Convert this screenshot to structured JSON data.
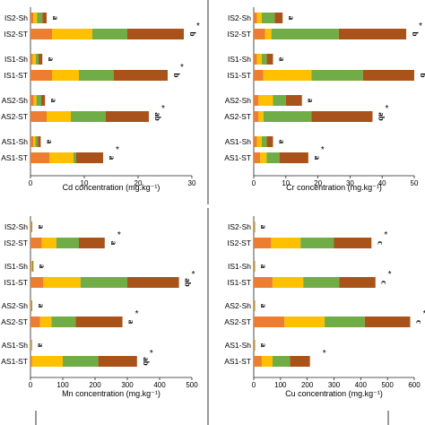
{
  "colors": [
    "#ED7D31",
    "#FFC000",
    "#70AD47",
    "#A9521A"
  ],
  "chart_data": [
    {
      "type": "bar",
      "stacked": true,
      "orientation": "horizontal",
      "xlabel": "Cd concentration (mg.kg⁻¹)",
      "xlim": [
        0,
        30
      ],
      "xticks": [
        "0",
        "10",
        "20",
        "30"
      ],
      "categories": [
        "IS2-Sh",
        "IS2-ST",
        "IS1-Sh",
        "IS1-ST",
        "AS2-Sh",
        "AS2-ST",
        "AS1-Sh",
        "AS1-ST"
      ],
      "series": [
        {
          "values": [
            0.5,
            4.0,
            0.4,
            4.0,
            0.6,
            3.0,
            0.5,
            3.5
          ]
        },
        {
          "values": [
            0.7,
            7.5,
            0.6,
            5.0,
            0.5,
            4.5,
            0.4,
            4.5
          ]
        },
        {
          "values": [
            1.0,
            6.5,
            0.5,
            6.5,
            0.9,
            6.5,
            0.5,
            0.5
          ]
        },
        {
          "values": [
            0.8,
            10.5,
            0.7,
            10.0,
            0.7,
            8.0,
            0.5,
            5.0
          ]
        }
      ],
      "letters": [
        "a",
        "b",
        "a",
        "b",
        "a",
        "ab",
        "a",
        "a"
      ],
      "stars": [
        "",
        "*",
        "",
        "*",
        "",
        "*",
        "",
        "*"
      ]
    },
    {
      "type": "bar",
      "stacked": true,
      "orientation": "horizontal",
      "xlabel": "Cr concentration (mg.kg⁻¹)",
      "xlim": [
        0,
        50
      ],
      "xticks": [
        "0",
        "10",
        "20",
        "30",
        "40",
        "50"
      ],
      "categories": [
        "IS2-Sh",
        "IS2-ST",
        "IS1-Sh",
        "IS1-ST",
        "AS2-Sh",
        "AS2-ST",
        "AS1-Sh",
        "AS1-ST"
      ],
      "series": [
        {
          "values": [
            1.0,
            3.5,
            1.0,
            3.0,
            1.5,
            1.5,
            1.0,
            2.0
          ]
        },
        {
          "values": [
            1.5,
            2.0,
            1.5,
            15.0,
            4.5,
            1.5,
            1.5,
            2.0
          ]
        },
        {
          "values": [
            4.0,
            21.0,
            1.5,
            16.0,
            4.0,
            15.0,
            1.5,
            4.0
          ]
        },
        {
          "values": [
            2.5,
            21.0,
            2.0,
            16.0,
            5.0,
            19.0,
            2.0,
            9.0
          ]
        }
      ],
      "letters": [
        "a",
        "b",
        "a",
        "b",
        "a",
        "ab",
        "a",
        "a"
      ],
      "stars": [
        "",
        "*",
        "",
        "*",
        "",
        "*",
        "",
        "*"
      ]
    },
    {
      "type": "bar",
      "stacked": true,
      "orientation": "horizontal",
      "xlabel": "Mn concentration (mg.kg⁻¹)",
      "xlim": [
        0,
        500
      ],
      "xticks": [
        "0",
        "100",
        "200",
        "300",
        "400",
        "500"
      ],
      "categories": [
        "IS2-Sh",
        "IS2-ST",
        "IS1-Sh",
        "IS1-ST",
        "AS2-Sh",
        "AS2-ST",
        "AS1-Sh",
        "AS1-ST"
      ],
      "series": [
        {
          "values": [
            2,
            35,
            3,
            40,
            2,
            30,
            1,
            5
          ]
        },
        {
          "values": [
            1,
            45,
            2,
            115,
            1,
            35,
            1,
            95
          ]
        },
        {
          "values": [
            1,
            70,
            2,
            145,
            1,
            75,
            1,
            110
          ]
        },
        {
          "values": [
            1,
            80,
            2,
            160,
            1,
            145,
            1,
            120
          ]
        }
      ],
      "letters": [
        "a",
        "a",
        "a",
        "ab",
        "a",
        "a",
        "a",
        "ab"
      ],
      "stars": [
        "",
        "*",
        "",
        "*",
        "",
        "*",
        "",
        "*"
      ]
    },
    {
      "type": "bar",
      "stacked": true,
      "orientation": "horizontal",
      "xlabel": "Cu concentration (mg.kg⁻¹)",
      "xlim": [
        0,
        600
      ],
      "xticks": [
        "0",
        "100",
        "200",
        "300",
        "400",
        "500",
        "600"
      ],
      "categories": [
        "IS2-Sh",
        "IS2-ST",
        "IS1-Sh",
        "IS1-ST",
        "AS2-Sh",
        "AS2-ST",
        "AS1-Sh",
        "AS1-ST"
      ],
      "series": [
        {
          "values": [
            1,
            65,
            1,
            70,
            1,
            115,
            1,
            30
          ]
        },
        {
          "values": [
            1,
            110,
            1,
            115,
            1,
            150,
            1,
            40
          ]
        },
        {
          "values": [
            1,
            125,
            1,
            135,
            1,
            150,
            1,
            65
          ]
        },
        {
          "values": [
            1,
            140,
            1,
            135,
            1,
            170,
            1,
            75
          ]
        }
      ],
      "letters": [
        "a",
        "c",
        "a",
        "c",
        "a",
        "c",
        "a",
        ""
      ],
      "stars": [
        "",
        "*",
        "",
        "*",
        "",
        "*",
        "",
        "*"
      ]
    }
  ]
}
